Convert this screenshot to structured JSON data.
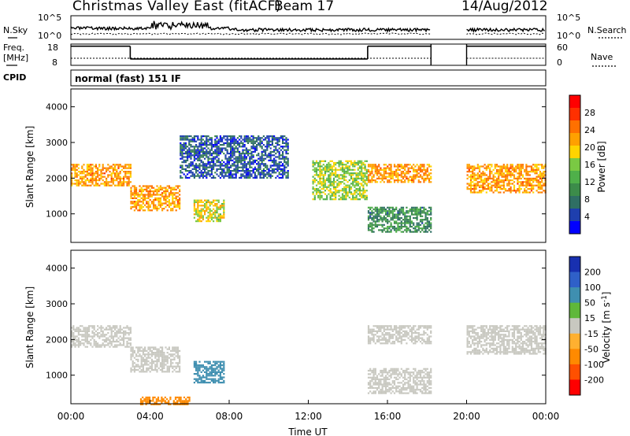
{
  "header": {
    "title": "Christmas Valley East (fitACF)",
    "beam": "Beam 17",
    "date": "14/Aug/2012"
  },
  "chart_data": [
    {
      "type": "line",
      "panel": "noise",
      "left_label": "N.Sky",
      "right_label": "N.Search",
      "left_ticks": [
        "10^5",
        "10^0"
      ],
      "right_ticks": [
        "10^5",
        "10^0"
      ],
      "data_gaps_ut_hours": [
        [
          18.2,
          20.0
        ]
      ]
    },
    {
      "type": "line",
      "panel": "frequency",
      "left_label": "Freq. [MHz]",
      "right_label": "Nave",
      "left_ticks": [
        "18",
        "8"
      ],
      "right_ticks": [
        "60",
        "0"
      ],
      "series": [
        {
          "name": "Freq. [MHz]",
          "segments": [
            [
              0,
              3.0,
              17
            ],
            [
              3.0,
              15.0,
              11
            ],
            [
              15.0,
              18.2,
              17
            ],
            [
              20.0,
              24,
              17
            ]
          ]
        },
        {
          "name": "Nave",
          "segments": [
            [
              0,
              18.2,
              20
            ],
            [
              20.0,
              24,
              20
            ]
          ]
        }
      ]
    },
    {
      "type": "table",
      "panel": "cpid",
      "label": "CPID",
      "value": "normal (fast) 151 IF"
    },
    {
      "type": "heatmap",
      "panel": "power",
      "ylabel": "Slant Range [km]",
      "yticks": [
        1000,
        2000,
        3000,
        4000
      ],
      "ylim": [
        200,
        4500
      ],
      "colorbar": {
        "label": "Power [dB]",
        "ticks": [
          "4",
          "8",
          "12",
          "16",
          "20",
          "24",
          "28"
        ],
        "colors": [
          "#0000ff",
          "#1e3fae",
          "#2f6f64",
          "#3c8c4a",
          "#4fb04a",
          "#7ac943",
          "#ffd400",
          "#ffa000",
          "#ff7000",
          "#ff3000",
          "#ff0000"
        ]
      },
      "features": [
        {
          "ut_start": 0.0,
          "ut_end": 3.0,
          "range_km": [
            1800,
            2400
          ],
          "power_db": 22
        },
        {
          "ut_start": 3.0,
          "ut_end": 5.5,
          "range_km": [
            1100,
            1800
          ],
          "power_db": 22
        },
        {
          "ut_start": 5.5,
          "ut_end": 11.0,
          "range_km": [
            2000,
            3200
          ],
          "power_db": 6
        },
        {
          "ut_start": 6.2,
          "ut_end": 7.7,
          "range_km": [
            800,
            1400
          ],
          "power_db": 18
        },
        {
          "ut_start": 12.2,
          "ut_end": 15.0,
          "range_km": [
            1400,
            2500
          ],
          "power_db": 16
        },
        {
          "ut_start": 15.0,
          "ut_end": 18.2,
          "range_km": [
            1900,
            2400
          ],
          "power_db": 22
        },
        {
          "ut_start": 15.0,
          "ut_end": 18.2,
          "range_km": [
            500,
            1200
          ],
          "power_db": 10
        },
        {
          "ut_start": 20.0,
          "ut_end": 24.0,
          "range_km": [
            1600,
            2400
          ],
          "power_db": 22
        }
      ]
    },
    {
      "type": "heatmap",
      "panel": "velocity",
      "xlabel": "Time UT",
      "ylabel": "Slant Range [km]",
      "xticks": [
        "00:00",
        "04:00",
        "08:00",
        "12:00",
        "16:00",
        "20:00",
        "00:00"
      ],
      "yticks": [
        1000,
        2000,
        3000,
        4000
      ],
      "xlim": [
        0,
        24
      ],
      "ylim": [
        200,
        4500
      ],
      "colorbar": {
        "label": "Velocity [m s-1]",
        "ticks": [
          "200",
          "100",
          "50",
          "15",
          "-15",
          "-50",
          "-100",
          "-200"
        ],
        "colors": [
          "#1830b0",
          "#2f60c8",
          "#3f8fb0",
          "#5fb83a",
          "#c8c8c0",
          "#ffb030",
          "#ff8a00",
          "#ff5000",
          "#ff0000"
        ]
      },
      "features": [
        {
          "ut_start": 0.0,
          "ut_end": 3.0,
          "range_km": [
            1800,
            2400
          ],
          "velocity": 0
        },
        {
          "ut_start": 3.0,
          "ut_end": 5.5,
          "range_km": [
            1100,
            1800
          ],
          "velocity": 0
        },
        {
          "ut_start": 6.2,
          "ut_end": 7.7,
          "range_km": [
            800,
            1400
          ],
          "velocity": 60
        },
        {
          "ut_start": 3.5,
          "ut_end": 6.0,
          "range_km": [
            200,
            400
          ],
          "velocity": -60
        },
        {
          "ut_start": 15.0,
          "ut_end": 18.2,
          "range_km": [
            1900,
            2400
          ],
          "velocity": 0
        },
        {
          "ut_start": 15.0,
          "ut_end": 18.2,
          "range_km": [
            500,
            1200
          ],
          "velocity": 0
        },
        {
          "ut_start": 20.0,
          "ut_end": 24.0,
          "range_km": [
            1600,
            2400
          ],
          "velocity": 0
        }
      ]
    }
  ]
}
